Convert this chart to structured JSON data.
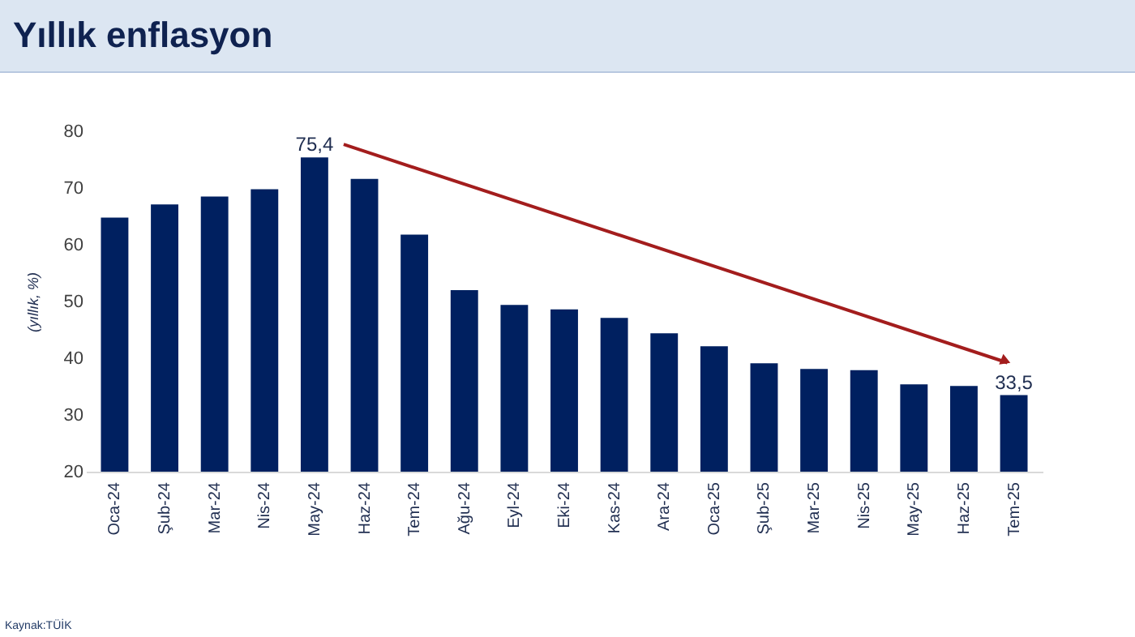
{
  "chart_data": {
    "type": "bar",
    "title": "Yıllık enflasyon",
    "ylabel": "(yıllık, %)",
    "categories": [
      "Oca-24",
      "Şub-24",
      "Mar-24",
      "Nis-24",
      "May-24",
      "Haz-24",
      "Tem-24",
      "Ağu-24",
      "Eyl-24",
      "Eki-24",
      "Kas-24",
      "Ara-24",
      "Oca-25",
      "Şub-25",
      "Mar-25",
      "Nis-25",
      "May-25",
      "Haz-25",
      "Tem-25"
    ],
    "values": [
      64.8,
      67.1,
      68.5,
      69.8,
      75.4,
      71.6,
      61.8,
      52.0,
      49.4,
      48.6,
      47.1,
      44.4,
      42.1,
      39.1,
      38.1,
      37.9,
      35.4,
      35.1,
      33.5
    ],
    "value_labels": [
      null,
      null,
      null,
      null,
      "75,4",
      null,
      null,
      null,
      null,
      null,
      null,
      null,
      null,
      null,
      null,
      null,
      null,
      null,
      "33,5"
    ],
    "color": "#002060",
    "ylim": [
      20,
      80
    ],
    "yticks": [
      20,
      30,
      40,
      50,
      60,
      70,
      80
    ],
    "grid": false,
    "annotations": [
      "Kaynak:TÜİK"
    ]
  }
}
